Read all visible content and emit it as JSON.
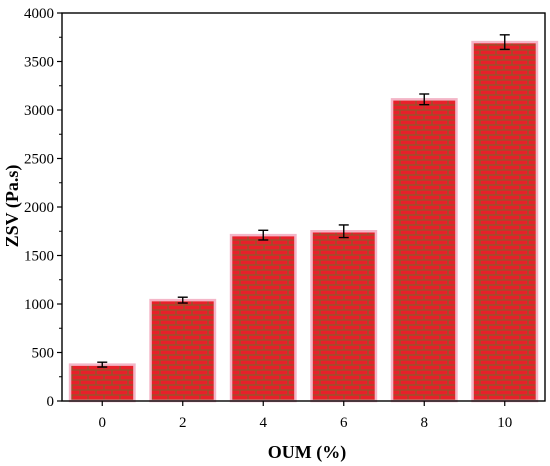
{
  "chart_data": {
    "type": "bar",
    "title": "",
    "xlabel": "OUM (%)",
    "ylabel": "ZSV (Pa.s)",
    "categories": [
      "0",
      "2",
      "4",
      "6",
      "8",
      "10"
    ],
    "values": [
      375,
      1040,
      1710,
      1750,
      3110,
      3700
    ],
    "errors": [
      25,
      30,
      50,
      65,
      55,
      75
    ],
    "ylim": [
      0,
      4000
    ],
    "yticks": [
      "0",
      "500",
      "1000",
      "1500",
      "2000",
      "2500",
      "3000",
      "3500",
      "4000"
    ],
    "grid": false,
    "legend": "none",
    "colors": {
      "bar_fill": "#e8202a",
      "bar_mortar": "#8a5a2b",
      "bar_edge": "#f4b6c8",
      "error_bar": "#000000",
      "axis": "#000000"
    }
  }
}
